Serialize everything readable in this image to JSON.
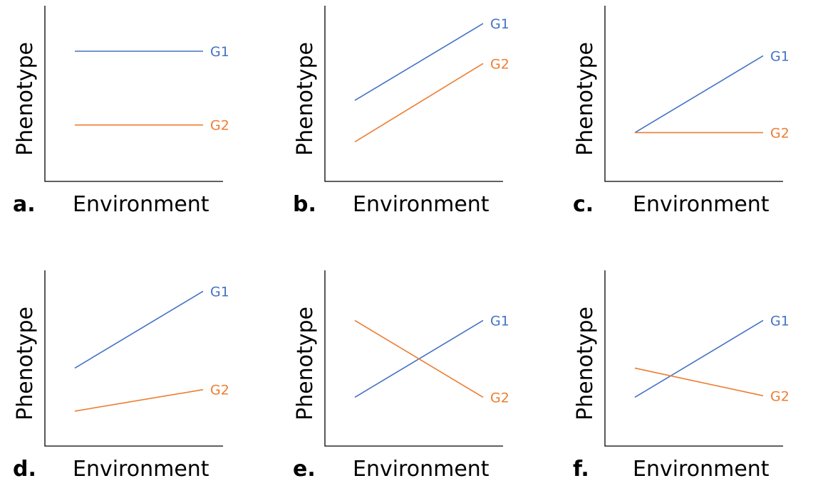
{
  "chart_data": [
    {
      "type": "line",
      "panel_label": "a.",
      "xlabel": "Environment",
      "ylabel": "Phenotype",
      "x": [
        0,
        1
      ],
      "ylim": [
        0,
        1
      ],
      "series": [
        {
          "name": "G1",
          "values": [
            0.75,
            0.75
          ],
          "color": "#4472c4"
        },
        {
          "name": "G2",
          "values": [
            0.27,
            0.27
          ],
          "color": "#ed7d31"
        }
      ]
    },
    {
      "type": "line",
      "panel_label": "b.",
      "xlabel": "Environment",
      "ylabel": "Phenotype",
      "x": [
        0,
        1
      ],
      "ylim": [
        0,
        1
      ],
      "series": [
        {
          "name": "G1",
          "values": [
            0.43,
            0.93
          ],
          "color": "#4472c4"
        },
        {
          "name": "G2",
          "values": [
            0.16,
            0.67
          ],
          "color": "#ed7d31"
        }
      ]
    },
    {
      "type": "line",
      "panel_label": "c.",
      "xlabel": "Environment",
      "ylabel": "Phenotype",
      "x": [
        0,
        1
      ],
      "ylim": [
        0,
        1
      ],
      "series": [
        {
          "name": "G1",
          "values": [
            0.22,
            0.72
          ],
          "color": "#4472c4"
        },
        {
          "name": "G2",
          "values": [
            0.22,
            0.22
          ],
          "color": "#ed7d31"
        }
      ]
    },
    {
      "type": "line",
      "panel_label": "d.",
      "xlabel": "Environment",
      "ylabel": "Phenotype",
      "x": [
        0,
        1
      ],
      "ylim": [
        0,
        1
      ],
      "series": [
        {
          "name": "G1",
          "values": [
            0.41,
            0.91
          ],
          "color": "#4472c4"
        },
        {
          "name": "G2",
          "values": [
            0.13,
            0.27
          ],
          "color": "#ed7d31"
        }
      ]
    },
    {
      "type": "line",
      "panel_label": "e.",
      "xlabel": "Environment",
      "ylabel": "Phenotype",
      "x": [
        0,
        1
      ],
      "ylim": [
        0,
        1
      ],
      "series": [
        {
          "name": "G1",
          "values": [
            0.22,
            0.72
          ],
          "color": "#4472c4"
        },
        {
          "name": "G2",
          "values": [
            0.72,
            0.22
          ],
          "color": "#ed7d31"
        }
      ]
    },
    {
      "type": "line",
      "panel_label": "f.",
      "xlabel": "Environment",
      "ylabel": "Phenotype",
      "x": [
        0,
        1
      ],
      "ylim": [
        0,
        1
      ],
      "series": [
        {
          "name": "G1",
          "values": [
            0.22,
            0.72
          ],
          "color": "#4472c4"
        },
        {
          "name": "G2",
          "values": [
            0.41,
            0.23
          ],
          "color": "#ed7d31"
        }
      ]
    }
  ]
}
